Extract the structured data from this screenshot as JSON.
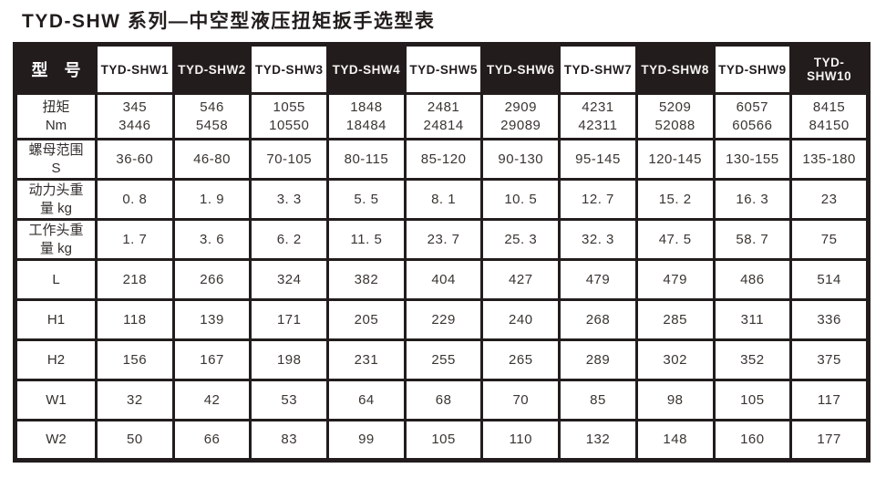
{
  "title": "TYD-SHW 系列—中空型液压扭矩扳手选型表",
  "colors": {
    "header_dark_bg": "#221d1c",
    "header_light_bg": "#ffffff",
    "border": "#221d1c",
    "text": "#3a3532"
  },
  "table": {
    "corner_label": "型　号",
    "model_headers": [
      "TYD-SHW1",
      "TYD-SHW2",
      "TYD-SHW3",
      "TYD-SHW4",
      "TYD-SHW5",
      "TYD-SHW6",
      "TYD-SHW7",
      "TYD-SHW8",
      "TYD-SHW9",
      "TYD-SHW10"
    ],
    "rows": [
      {
        "label": "扭矩\nNm",
        "values": [
          "345\n3446",
          "546\n5458",
          "1055\n10550",
          "1848\n18484",
          "2481\n24814",
          "2909\n29089",
          "4231\n42311",
          "5209\n52088",
          "6057\n60566",
          "8415\n84150"
        ]
      },
      {
        "label": "螺母范围\nS",
        "values": [
          "36-60",
          "46-80",
          "70-105",
          "80-115",
          "85-120",
          "90-130",
          "95-145",
          "120-145",
          "130-155",
          "135-180"
        ]
      },
      {
        "label": "动力头重\n量 kg",
        "values": [
          "0. 8",
          "1. 9",
          "3. 3",
          "5. 5",
          "8. 1",
          "10. 5",
          "12. 7",
          "15. 2",
          "16. 3",
          "23"
        ]
      },
      {
        "label": "工作头重\n量 kg",
        "values": [
          "1. 7",
          "3. 6",
          "6. 2",
          "11. 5",
          "23. 7",
          "25. 3",
          "32. 3",
          "47. 5",
          "58. 7",
          "75"
        ]
      },
      {
        "label": "L",
        "values": [
          "218",
          "266",
          "324",
          "382",
          "404",
          "427",
          "479",
          "479",
          "486",
          "514"
        ]
      },
      {
        "label": "H1",
        "values": [
          "118",
          "139",
          "171",
          "205",
          "229",
          "240",
          "268",
          "285",
          "311",
          "336"
        ]
      },
      {
        "label": "H2",
        "values": [
          "156",
          "167",
          "198",
          "231",
          "255",
          "265",
          "289",
          "302",
          "352",
          "375"
        ]
      },
      {
        "label": "W1",
        "values": [
          "32",
          "42",
          "53",
          "64",
          "68",
          "70",
          "85",
          "98",
          "105",
          "117"
        ]
      },
      {
        "label": "W2",
        "values": [
          "50",
          "66",
          "83",
          "99",
          "105",
          "110",
          "132",
          "148",
          "160",
          "177"
        ]
      }
    ]
  }
}
